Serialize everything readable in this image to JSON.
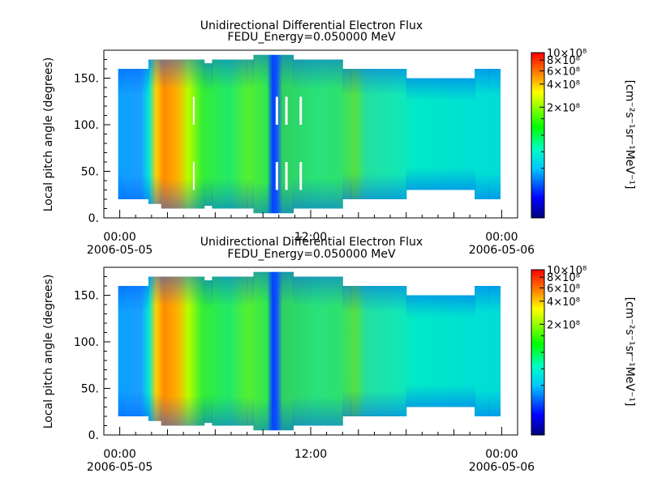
{
  "chart_data": [
    {
      "type": "heatmap",
      "title": "Unidirectional Differential Electron Flux",
      "subtitle": "FEDU_Energy=0.050000 MeV",
      "ylabel": "Local pitch angle (degrees)",
      "colorbar_label": "[cm⁻²s⁻¹sr⁻¹MeV⁻¹]",
      "colorbar_ticks": [
        "10×10⁸",
        "8×10⁸",
        "6×10⁸",
        "4×10⁸",
        "2×10⁸"
      ],
      "colorbar_scale": "log",
      "ylim": [
        0,
        180
      ],
      "yticks": [
        "0.",
        "50.",
        "100.",
        "150."
      ],
      "x_range_hours": [
        -1,
        25
      ],
      "xticks": [
        {
          "hour": 0,
          "label": "00:00",
          "sublabel": "2006-05-05"
        },
        {
          "hour": 12,
          "label": "12:00",
          "sublabel": ""
        },
        {
          "hour": 24,
          "label": "00:00",
          "sublabel": "2006-05-06"
        }
      ],
      "data_gaps": [
        {
          "hours": [
            4.6,
            4.7
          ],
          "pitch": [
            30,
            60
          ]
        },
        {
          "hours": [
            4.6,
            4.7
          ],
          "pitch": [
            100,
            130
          ]
        },
        {
          "hours": [
            9.8,
            9.95
          ],
          "pitch": [
            30,
            60
          ]
        },
        {
          "hours": [
            9.8,
            9.95
          ],
          "pitch": [
            100,
            130
          ]
        },
        {
          "hours": [
            10.4,
            10.55
          ],
          "pitch": [
            30,
            60
          ]
        },
        {
          "hours": [
            10.4,
            10.55
          ],
          "pitch": [
            100,
            130
          ]
        },
        {
          "hours": [
            11.3,
            11.45
          ],
          "pitch": [
            30,
            60
          ]
        },
        {
          "hours": [
            11.3,
            11.45
          ],
          "pitch": [
            100,
            130
          ]
        }
      ]
    },
    {
      "type": "heatmap",
      "title": "Unidirectional Differential Electron Flux",
      "subtitle": "FEDU_Energy=0.050000 MeV",
      "ylabel": "Local pitch angle (degrees)",
      "colorbar_label": "[cm⁻²s⁻¹sr⁻¹MeV⁻¹]",
      "colorbar_ticks": [
        "10×10⁸",
        "8×10⁸",
        "6×10⁸",
        "4×10⁸",
        "2×10⁸"
      ],
      "colorbar_scale": "log",
      "ylim": [
        0,
        180
      ],
      "yticks": [
        "0.",
        "50.",
        "100.",
        "150."
      ],
      "x_range_hours": [
        -1,
        25
      ],
      "xticks": [
        {
          "hour": 0,
          "label": "00:00",
          "sublabel": "2006-05-05"
        },
        {
          "hour": 12,
          "label": "12:00",
          "sublabel": ""
        },
        {
          "hour": 24,
          "label": "00:00",
          "sublabel": "2006-05-06"
        }
      ],
      "data_gaps": []
    }
  ]
}
